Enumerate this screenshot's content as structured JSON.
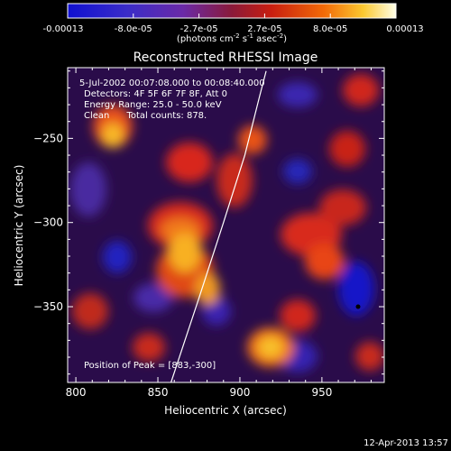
{
  "colorbar": {
    "ticks": [
      "-0.00013",
      "-8.0e-05",
      "-2.7e-05",
      "2.7e-05",
      "8.0e-05",
      "0.00013"
    ],
    "units_main": "(photons cm",
    "units_exp1": "-2",
    "units_mid": " s",
    "units_exp2": "-1",
    "units_after": " asec",
    "units_exp3": "-2",
    "units_close": ")"
  },
  "chart_data": {
    "type": "heatmap",
    "title": "Reconstructed RHESSI Image",
    "xlabel": "Heliocentric X (arcsec)",
    "ylabel": "Heliocentric Y (arcsec)",
    "xlim": [
      795,
      988
    ],
    "ylim": [
      -395,
      -208
    ],
    "x_ticks": [
      800,
      850,
      900,
      950
    ],
    "y_ticks": [
      -250,
      -300,
      -350
    ],
    "x_tick_labels": [
      "800",
      "850",
      "900",
      "950"
    ],
    "y_tick_labels": [
      "−250",
      "−300",
      "−350"
    ],
    "colormap": "hot on blue-purple (signed)",
    "info_lines": [
      "5-Jul-2002 00:07:08.000 to 00:08:40.000",
      "Detectors: 4F 5F 6F 7F 8F, Att 0",
      "Energy Range: 25.0 - 50.0 keV",
      "Clean      Total counts: 878."
    ],
    "peak_label": "Position of Peak = [883,-300]",
    "peak": [
      883,
      -300
    ],
    "limb_curve": [
      [
        858,
        -395
      ],
      [
        875,
        -345
      ],
      [
        890,
        -300
      ],
      [
        903,
        -260
      ],
      [
        912,
        -225
      ],
      [
        916,
        -210
      ]
    ]
  },
  "timestamp": "12-Apr-2013 13:57"
}
